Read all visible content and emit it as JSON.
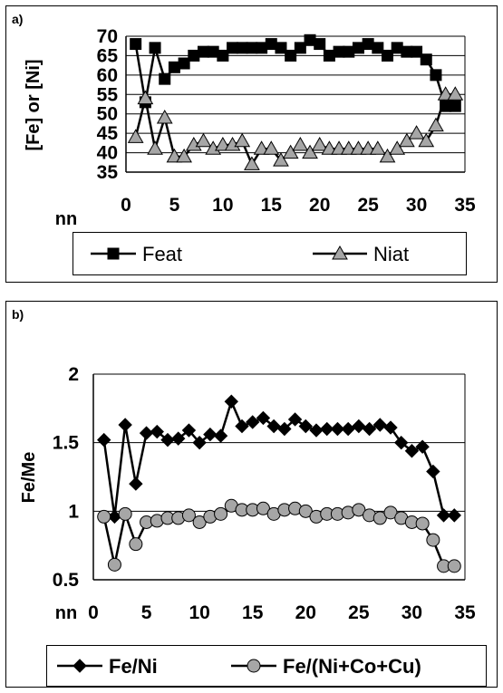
{
  "panels": {
    "a_label": "a)",
    "b_label": "b)"
  },
  "colors": {
    "line": "#000000",
    "marker_dark": "#000000",
    "marker_gray": "#a6a6a6"
  },
  "chart_data": [
    {
      "type": "line",
      "panel": "a)",
      "xlabel": "nn",
      "ylabel": "[Fe] or [Ni]",
      "xlim": [
        0,
        35
      ],
      "ylim": [
        35,
        70
      ],
      "xticks": [
        0,
        5,
        10,
        15,
        20,
        25,
        30,
        35
      ],
      "yticks": [
        35,
        40,
        45,
        50,
        55,
        60,
        65,
        70
      ],
      "grid": "horizontal",
      "legend_position": "bottom",
      "series": [
        {
          "name": "Feat",
          "marker": "square",
          "x": [
            1,
            2,
            3,
            4,
            5,
            6,
            7,
            8,
            9,
            10,
            11,
            12,
            13,
            14,
            15,
            16,
            17,
            18,
            19,
            20,
            21,
            22,
            23,
            24,
            25,
            26,
            27,
            28,
            29,
            30,
            31,
            32,
            33,
            34
          ],
          "values": [
            68,
            53,
            67,
            59,
            62,
            63,
            65,
            66,
            66,
            65,
            67,
            67,
            67,
            67,
            68,
            67,
            65,
            67,
            69,
            68,
            65,
            66,
            66,
            67,
            68,
            67,
            65,
            67,
            66,
            66,
            64,
            60,
            52,
            52
          ]
        },
        {
          "name": "Niat",
          "marker": "triangle",
          "x": [
            1,
            2,
            3,
            4,
            5,
            6,
            7,
            8,
            9,
            10,
            11,
            12,
            13,
            14,
            15,
            16,
            17,
            18,
            19,
            20,
            21,
            22,
            23,
            24,
            25,
            26,
            27,
            28,
            29,
            30,
            31,
            32,
            33,
            34
          ],
          "values": [
            44,
            54,
            41,
            49,
            39,
            39,
            42,
            43,
            41,
            42,
            42,
            43,
            37,
            41,
            41,
            38,
            40,
            42,
            40,
            42,
            41,
            41,
            41,
            41,
            41,
            41,
            39,
            41,
            43,
            45,
            43,
            47,
            55,
            55
          ]
        }
      ]
    },
    {
      "type": "line",
      "panel": "b)",
      "xlabel": "nn",
      "ylabel": "Fe/Me",
      "xlim": [
        0,
        35
      ],
      "ylim": [
        0.5,
        2
      ],
      "xticks": [
        0,
        5,
        10,
        15,
        20,
        25,
        30,
        35
      ],
      "yticks": [
        0.5,
        1,
        1.5,
        2
      ],
      "ytick_labels": [
        "0.5",
        "1",
        "1.5",
        "2"
      ],
      "grid": "horizontal",
      "legend_position": "bottom",
      "series": [
        {
          "name": "Fe/Ni",
          "marker": "diamond",
          "x": [
            1,
            2,
            3,
            4,
            5,
            6,
            7,
            8,
            9,
            10,
            11,
            12,
            13,
            14,
            15,
            16,
            17,
            18,
            19,
            20,
            21,
            22,
            23,
            24,
            25,
            26,
            27,
            28,
            29,
            30,
            31,
            32,
            33,
            34
          ],
          "values": [
            1.52,
            0.96,
            1.63,
            1.2,
            1.57,
            1.58,
            1.52,
            1.53,
            1.59,
            1.5,
            1.56,
            1.55,
            1.8,
            1.62,
            1.65,
            1.68,
            1.62,
            1.6,
            1.67,
            1.62,
            1.59,
            1.6,
            1.6,
            1.6,
            1.62,
            1.6,
            1.63,
            1.61,
            1.5,
            1.44,
            1.47,
            1.29,
            0.97,
            0.97
          ]
        },
        {
          "name": "Fe/(Ni+Co+Cu)",
          "marker": "circle",
          "x": [
            1,
            2,
            3,
            4,
            5,
            6,
            7,
            8,
            9,
            10,
            11,
            12,
            13,
            14,
            15,
            16,
            17,
            18,
            19,
            20,
            21,
            22,
            23,
            24,
            25,
            26,
            27,
            28,
            29,
            30,
            31,
            32,
            33,
            34
          ],
          "values": [
            0.96,
            0.61,
            0.98,
            0.76,
            0.92,
            0.93,
            0.95,
            0.95,
            0.97,
            0.92,
            0.96,
            0.98,
            1.04,
            1.01,
            1.01,
            1.02,
            0.98,
            1.01,
            1.02,
            1.0,
            0.96,
            0.98,
            0.98,
            0.99,
            1.01,
            0.97,
            0.95,
            0.99,
            0.95,
            0.92,
            0.91,
            0.79,
            0.6,
            0.6
          ]
        }
      ]
    }
  ]
}
